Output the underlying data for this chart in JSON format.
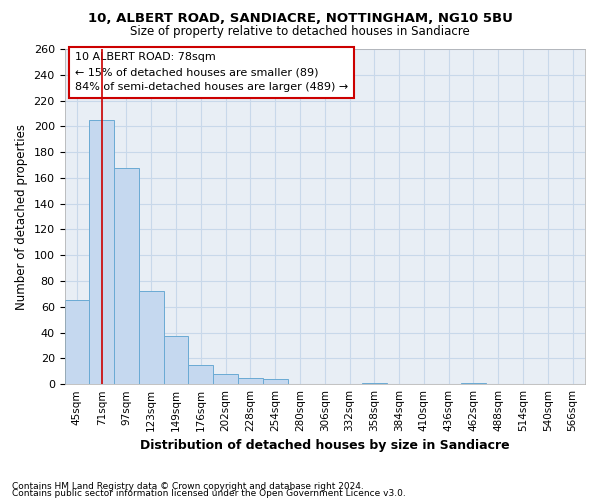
{
  "title1": "10, ALBERT ROAD, SANDIACRE, NOTTINGHAM, NG10 5BU",
  "title2": "Size of property relative to detached houses in Sandiacre",
  "xlabel": "Distribution of detached houses by size in Sandiacre",
  "ylabel": "Number of detached properties",
  "bin_labels": [
    "45sqm",
    "71sqm",
    "97sqm",
    "123sqm",
    "149sqm",
    "176sqm",
    "202sqm",
    "228sqm",
    "254sqm",
    "280sqm",
    "306sqm",
    "332sqm",
    "358sqm",
    "384sqm",
    "410sqm",
    "436sqm",
    "462sqm",
    "488sqm",
    "514sqm",
    "540sqm",
    "566sqm"
  ],
  "bar_values": [
    65,
    205,
    168,
    72,
    37,
    15,
    8,
    5,
    4,
    0,
    0,
    0,
    1,
    0,
    0,
    0,
    1,
    0,
    0,
    0,
    0
  ],
  "bar_color": "#c5d8ef",
  "bar_edge_color": "#6aaad4",
  "grid_color": "#c8d8ea",
  "background_color": "#e8eef5",
  "annotation_text": "10 ALBERT ROAD: 78sqm\n← 15% of detached houses are smaller (89)\n84% of semi-detached houses are larger (489) →",
  "annotation_box_color": "#ffffff",
  "annotation_box_edge": "#cc0000",
  "red_line_x": 1.0,
  "ylim": [
    0,
    260
  ],
  "yticks": [
    0,
    20,
    40,
    60,
    80,
    100,
    120,
    140,
    160,
    180,
    200,
    220,
    240,
    260
  ],
  "footnote1": "Contains HM Land Registry data © Crown copyright and database right 2024.",
  "footnote2": "Contains public sector information licensed under the Open Government Licence v3.0."
}
